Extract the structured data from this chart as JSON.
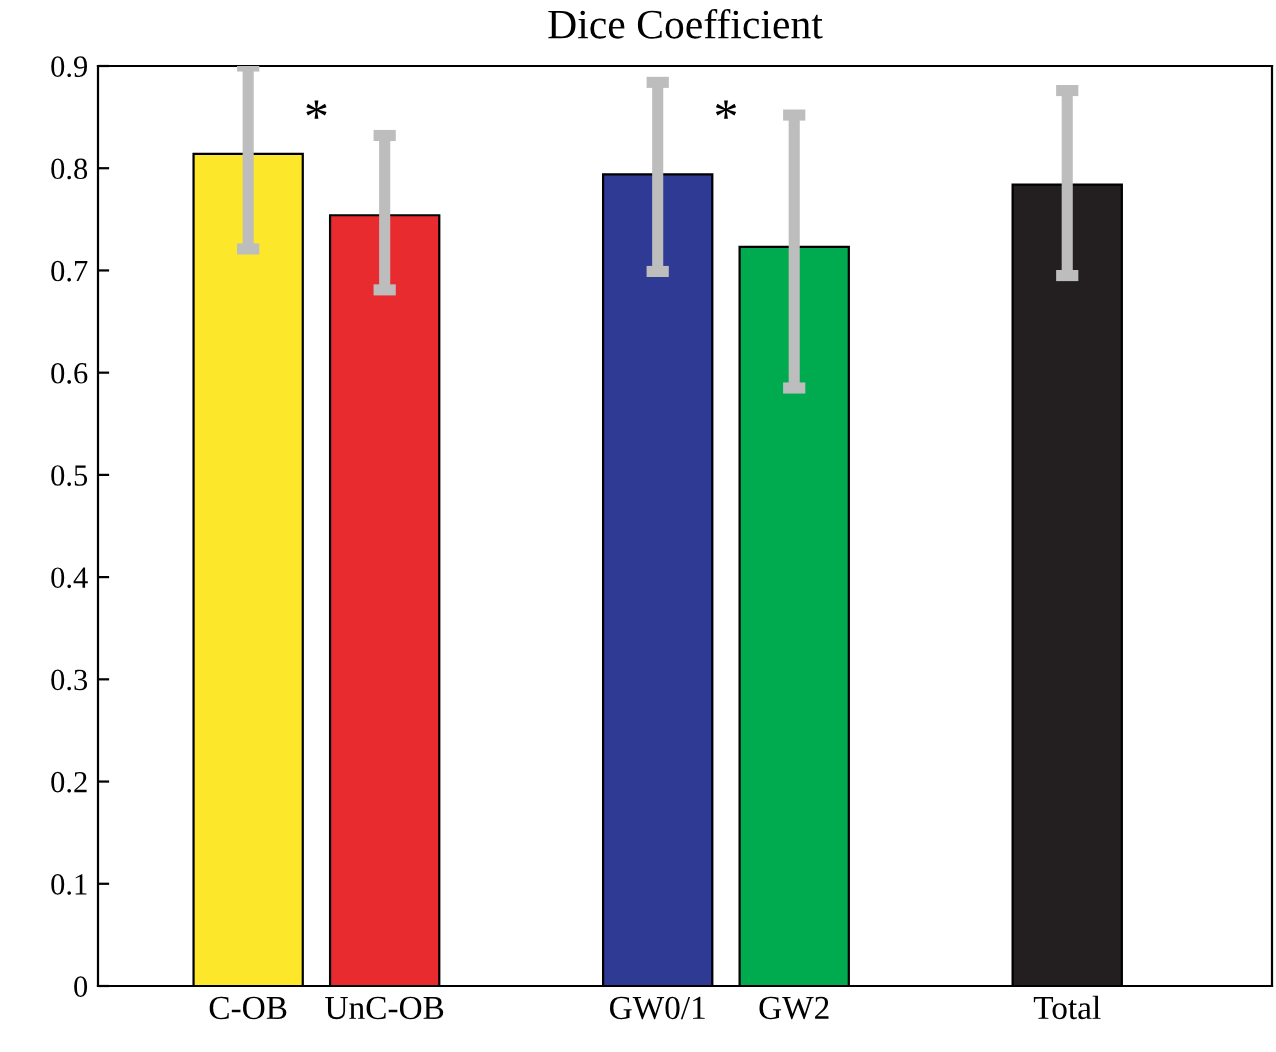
{
  "chart_data": {
    "type": "bar",
    "title": "Dice Coefficient",
    "categories": [
      "C-OB",
      "UnC-OB",
      null,
      "GW0/1",
      "GW2",
      null,
      "Total"
    ],
    "values": [
      0.814,
      0.754,
      null,
      0.794,
      0.723,
      null,
      0.784
    ],
    "colors": [
      "#fce72a",
      "#e82b2e",
      "#ffffff",
      "#2e3a94",
      "#00aa4f",
      "#ffffff",
      "#231f20"
    ],
    "errors": [
      [
        0.721,
        0.9
      ],
      [
        0.681,
        0.832
      ],
      null,
      [
        0.699,
        0.884
      ],
      [
        0.585,
        0.852
      ],
      null,
      [
        0.695,
        0.876
      ]
    ],
    "ylim": [
      0,
      0.9
    ],
    "yticks": [
      0,
      0.1,
      0.2,
      0.3,
      0.4,
      0.5,
      0.6,
      0.7,
      0.8,
      0.9
    ],
    "annotations": [
      "*",
      "*"
    ],
    "grid": false,
    "legend": false
  }
}
